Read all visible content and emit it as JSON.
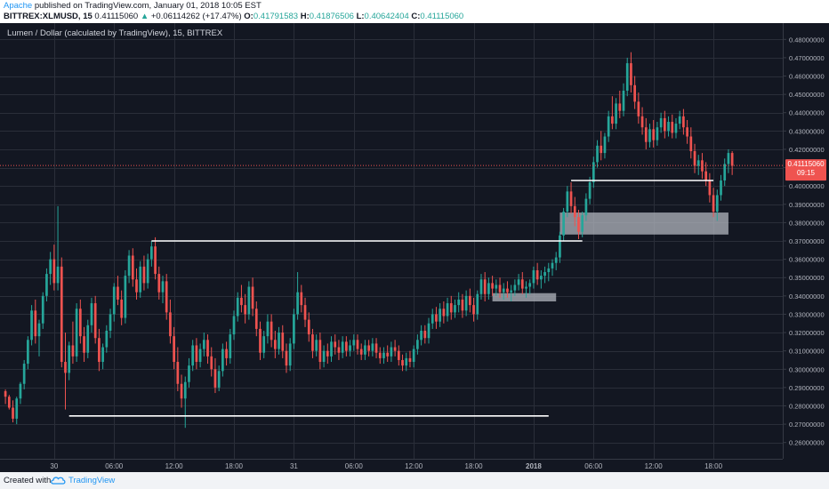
{
  "header": {
    "author": "Apache",
    "published_text": "published on TradingView.com, January 01, 2018 10:05 EST",
    "symbol": "BITTREX:XLMUSD, 15",
    "last": "0.41115060",
    "change_arrow": "▲",
    "change": "+0.06114262 (+17.47%)",
    "o_label": "O:",
    "o_value": "0.41791583",
    "h_label": "H:",
    "h_value": "0.41876506",
    "l_label": "L:",
    "l_value": "0.40642404",
    "c_label": "C:",
    "c_value": "0.41115060"
  },
  "footer": {
    "created_with": "Created with",
    "logo_icon": "tradingview-cloud-icon",
    "brand": "TradingView"
  },
  "chart_data": {
    "type": "candlestick",
    "title": "Lumen / Dollar (calculated by TradingView), 15, BITTREX",
    "ylim": [
      0.255,
      0.485
    ],
    "xlim": [
      0,
      208
    ],
    "y_ticks": [
      0.26,
      0.27,
      0.28,
      0.29,
      0.3,
      0.31,
      0.32,
      0.33,
      0.34,
      0.35,
      0.36,
      0.37,
      0.38,
      0.39,
      0.4,
      0.41,
      0.42,
      0.43,
      0.44,
      0.45,
      0.46,
      0.47,
      0.48
    ],
    "y_tick_labels": [
      "0.26000000",
      "0.27000000",
      "0.28000000",
      "0.29000000",
      "0.30000000",
      "0.31000000",
      "0.32000000",
      "0.33000000",
      "0.34000000",
      "0.35000000",
      "0.36000000",
      "0.37000000",
      "0.38000000",
      "0.39000000",
      "0.40000000",
      "0.41000000",
      "0.42000000",
      "0.43000000",
      "0.44000000",
      "0.45000000",
      "0.46000000",
      "0.47000000",
      "0.48000000"
    ],
    "x_ticks": [
      {
        "label": "30",
        "bar": 13
      },
      {
        "label": "06:00",
        "bar": 29
      },
      {
        "label": "12:00",
        "bar": 45
      },
      {
        "label": "18:00",
        "bar": 61
      },
      {
        "label": "31",
        "bar": 77
      },
      {
        "label": "06:00",
        "bar": 93
      },
      {
        "label": "12:00",
        "bar": 109
      },
      {
        "label": "18:00",
        "bar": 125
      },
      {
        "label": "2018",
        "bar": 141
      },
      {
        "label": "06:00",
        "bar": 157
      },
      {
        "label": "12:00",
        "bar": 173
      },
      {
        "label": "18:00",
        "bar": 189
      }
    ],
    "price_label": "0.41115060",
    "countdown": "09:15",
    "current_price": 0.4112,
    "candles": [
      [
        0.288,
        0.289,
        0.281,
        0.285
      ],
      [
        0.285,
        0.286,
        0.278,
        0.279
      ],
      [
        0.279,
        0.283,
        0.271,
        0.273
      ],
      [
        0.273,
        0.285,
        0.27,
        0.284
      ],
      [
        0.284,
        0.293,
        0.281,
        0.292
      ],
      [
        0.292,
        0.305,
        0.289,
        0.303
      ],
      [
        0.303,
        0.318,
        0.3,
        0.316
      ],
      [
        0.316,
        0.335,
        0.313,
        0.332
      ],
      [
        0.332,
        0.338,
        0.314,
        0.318
      ],
      [
        0.318,
        0.327,
        0.307,
        0.325
      ],
      [
        0.325,
        0.342,
        0.322,
        0.34
      ],
      [
        0.34,
        0.355,
        0.337,
        0.352
      ],
      [
        0.352,
        0.364,
        0.346,
        0.36
      ],
      [
        0.36,
        0.368,
        0.343,
        0.347
      ],
      [
        0.347,
        0.389,
        0.343,
        0.356
      ],
      [
        0.356,
        0.361,
        0.301,
        0.304
      ],
      [
        0.304,
        0.32,
        0.278,
        0.298
      ],
      [
        0.298,
        0.315,
        0.294,
        0.313
      ],
      [
        0.313,
        0.326,
        0.303,
        0.307
      ],
      [
        0.307,
        0.336,
        0.304,
        0.333
      ],
      [
        0.333,
        0.338,
        0.314,
        0.318
      ],
      [
        0.318,
        0.323,
        0.304,
        0.309
      ],
      [
        0.309,
        0.327,
        0.306,
        0.324
      ],
      [
        0.324,
        0.339,
        0.32,
        0.336
      ],
      [
        0.336,
        0.34,
        0.314,
        0.317
      ],
      [
        0.317,
        0.322,
        0.299,
        0.304
      ],
      [
        0.304,
        0.314,
        0.3,
        0.312
      ],
      [
        0.312,
        0.324,
        0.309,
        0.321
      ],
      [
        0.321,
        0.333,
        0.317,
        0.33
      ],
      [
        0.33,
        0.347,
        0.326,
        0.345
      ],
      [
        0.345,
        0.351,
        0.335,
        0.338
      ],
      [
        0.338,
        0.343,
        0.324,
        0.328
      ],
      [
        0.328,
        0.354,
        0.325,
        0.351
      ],
      [
        0.351,
        0.365,
        0.347,
        0.362
      ],
      [
        0.362,
        0.366,
        0.345,
        0.349
      ],
      [
        0.349,
        0.355,
        0.338,
        0.342
      ],
      [
        0.342,
        0.359,
        0.339,
        0.356
      ],
      [
        0.356,
        0.362,
        0.343,
        0.347
      ],
      [
        0.347,
        0.363,
        0.344,
        0.36
      ],
      [
        0.36,
        0.37,
        0.356,
        0.367
      ],
      [
        0.367,
        0.372,
        0.349,
        0.352
      ],
      [
        0.352,
        0.356,
        0.338,
        0.342
      ],
      [
        0.342,
        0.351,
        0.336,
        0.348
      ],
      [
        0.348,
        0.352,
        0.327,
        0.331
      ],
      [
        0.331,
        0.338,
        0.314,
        0.318
      ],
      [
        0.318,
        0.323,
        0.3,
        0.304
      ],
      [
        0.304,
        0.312,
        0.288,
        0.292
      ],
      [
        0.292,
        0.297,
        0.279,
        0.284
      ],
      [
        0.284,
        0.296,
        0.268,
        0.293
      ],
      [
        0.293,
        0.306,
        0.29,
        0.302
      ],
      [
        0.302,
        0.316,
        0.299,
        0.313
      ],
      [
        0.313,
        0.317,
        0.3,
        0.304
      ],
      [
        0.304,
        0.314,
        0.301,
        0.311
      ],
      [
        0.311,
        0.32,
        0.307,
        0.316
      ],
      [
        0.316,
        0.319,
        0.303,
        0.307
      ],
      [
        0.307,
        0.312,
        0.296,
        0.3
      ],
      [
        0.3,
        0.306,
        0.287,
        0.29
      ],
      [
        0.29,
        0.302,
        0.288,
        0.299
      ],
      [
        0.299,
        0.314,
        0.296,
        0.311
      ],
      [
        0.311,
        0.315,
        0.302,
        0.306
      ],
      [
        0.306,
        0.322,
        0.303,
        0.319
      ],
      [
        0.319,
        0.332,
        0.316,
        0.329
      ],
      [
        0.329,
        0.342,
        0.326,
        0.339
      ],
      [
        0.339,
        0.346,
        0.331,
        0.335
      ],
      [
        0.335,
        0.341,
        0.325,
        0.33
      ],
      [
        0.33,
        0.348,
        0.327,
        0.345
      ],
      [
        0.345,
        0.35,
        0.329,
        0.333
      ],
      [
        0.333,
        0.337,
        0.318,
        0.322
      ],
      [
        0.322,
        0.326,
        0.305,
        0.309
      ],
      [
        0.309,
        0.321,
        0.306,
        0.318
      ],
      [
        0.318,
        0.33,
        0.314,
        0.326
      ],
      [
        0.326,
        0.33,
        0.312,
        0.316
      ],
      [
        0.316,
        0.321,
        0.306,
        0.311
      ],
      [
        0.311,
        0.323,
        0.308,
        0.32
      ],
      [
        0.32,
        0.324,
        0.306,
        0.31
      ],
      [
        0.31,
        0.314,
        0.298,
        0.302
      ],
      [
        0.302,
        0.317,
        0.299,
        0.314
      ],
      [
        0.314,
        0.333,
        0.311,
        0.33
      ],
      [
        0.33,
        0.353,
        0.327,
        0.342
      ],
      [
        0.342,
        0.346,
        0.331,
        0.335
      ],
      [
        0.335,
        0.339,
        0.323,
        0.327
      ],
      [
        0.327,
        0.331,
        0.315,
        0.319
      ],
      [
        0.319,
        0.322,
        0.306,
        0.31
      ],
      [
        0.31,
        0.319,
        0.307,
        0.316
      ],
      [
        0.316,
        0.32,
        0.3,
        0.304
      ],
      [
        0.304,
        0.313,
        0.301,
        0.31
      ],
      [
        0.31,
        0.314,
        0.303,
        0.307
      ],
      [
        0.307,
        0.318,
        0.304,
        0.315
      ],
      [
        0.315,
        0.319,
        0.308,
        0.312
      ],
      [
        0.312,
        0.316,
        0.305,
        0.309
      ],
      [
        0.309,
        0.318,
        0.306,
        0.315
      ],
      [
        0.315,
        0.318,
        0.307,
        0.31
      ],
      [
        0.31,
        0.316,
        0.307,
        0.313
      ],
      [
        0.313,
        0.319,
        0.31,
        0.316
      ],
      [
        0.316,
        0.319,
        0.308,
        0.311
      ],
      [
        0.311,
        0.314,
        0.305,
        0.308
      ],
      [
        0.308,
        0.316,
        0.305,
        0.313
      ],
      [
        0.313,
        0.316,
        0.307,
        0.31
      ],
      [
        0.31,
        0.317,
        0.307,
        0.314
      ],
      [
        0.314,
        0.317,
        0.306,
        0.309
      ],
      [
        0.309,
        0.312,
        0.303,
        0.306
      ],
      [
        0.306,
        0.312,
        0.303,
        0.309
      ],
      [
        0.309,
        0.313,
        0.304,
        0.307
      ],
      [
        0.307,
        0.315,
        0.304,
        0.312
      ],
      [
        0.312,
        0.316,
        0.307,
        0.31
      ],
      [
        0.31,
        0.313,
        0.302,
        0.305
      ],
      [
        0.305,
        0.308,
        0.299,
        0.302
      ],
      [
        0.302,
        0.309,
        0.299,
        0.306
      ],
      [
        0.306,
        0.31,
        0.301,
        0.304
      ],
      [
        0.304,
        0.313,
        0.301,
        0.311
      ],
      [
        0.311,
        0.319,
        0.308,
        0.316
      ],
      [
        0.316,
        0.324,
        0.313,
        0.321
      ],
      [
        0.321,
        0.324,
        0.314,
        0.317
      ],
      [
        0.317,
        0.328,
        0.314,
        0.325
      ],
      [
        0.325,
        0.333,
        0.322,
        0.33
      ],
      [
        0.33,
        0.334,
        0.322,
        0.326
      ],
      [
        0.326,
        0.336,
        0.323,
        0.333
      ],
      [
        0.333,
        0.337,
        0.325,
        0.329
      ],
      [
        0.329,
        0.339,
        0.326,
        0.336
      ],
      [
        0.336,
        0.34,
        0.327,
        0.331
      ],
      [
        0.331,
        0.338,
        0.328,
        0.335
      ],
      [
        0.335,
        0.342,
        0.331,
        0.338
      ],
      [
        0.338,
        0.341,
        0.328,
        0.332
      ],
      [
        0.332,
        0.343,
        0.329,
        0.34
      ],
      [
        0.34,
        0.344,
        0.331,
        0.335
      ],
      [
        0.335,
        0.339,
        0.326,
        0.33
      ],
      [
        0.33,
        0.343,
        0.327,
        0.341
      ],
      [
        0.341,
        0.352,
        0.338,
        0.349
      ],
      [
        0.349,
        0.353,
        0.337,
        0.341
      ],
      [
        0.341,
        0.35,
        0.338,
        0.347
      ],
      [
        0.347,
        0.351,
        0.34,
        0.344
      ],
      [
        0.344,
        0.349,
        0.34,
        0.346
      ],
      [
        0.346,
        0.35,
        0.339,
        0.342
      ],
      [
        0.342,
        0.347,
        0.338,
        0.344
      ],
      [
        0.344,
        0.348,
        0.339,
        0.342
      ],
      [
        0.342,
        0.346,
        0.337,
        0.343
      ],
      [
        0.343,
        0.349,
        0.34,
        0.346
      ],
      [
        0.346,
        0.352,
        0.343,
        0.349
      ],
      [
        0.349,
        0.353,
        0.341,
        0.344
      ],
      [
        0.344,
        0.348,
        0.339,
        0.345
      ],
      [
        0.345,
        0.349,
        0.341,
        0.347
      ],
      [
        0.347,
        0.356,
        0.344,
        0.354
      ],
      [
        0.354,
        0.358,
        0.346,
        0.349
      ],
      [
        0.349,
        0.354,
        0.344,
        0.351
      ],
      [
        0.351,
        0.356,
        0.347,
        0.353
      ],
      [
        0.353,
        0.358,
        0.348,
        0.355
      ],
      [
        0.355,
        0.36,
        0.351,
        0.358
      ],
      [
        0.358,
        0.364,
        0.354,
        0.361
      ],
      [
        0.361,
        0.375,
        0.358,
        0.373
      ],
      [
        0.373,
        0.388,
        0.37,
        0.386
      ],
      [
        0.386,
        0.4,
        0.383,
        0.397
      ],
      [
        0.397,
        0.402,
        0.385,
        0.389
      ],
      [
        0.389,
        0.394,
        0.378,
        0.383
      ],
      [
        0.383,
        0.387,
        0.371,
        0.375
      ],
      [
        0.375,
        0.386,
        0.372,
        0.384
      ],
      [
        0.384,
        0.396,
        0.381,
        0.393
      ],
      [
        0.393,
        0.405,
        0.39,
        0.402
      ],
      [
        0.402,
        0.416,
        0.399,
        0.413
      ],
      [
        0.413,
        0.425,
        0.41,
        0.422
      ],
      [
        0.422,
        0.43,
        0.414,
        0.418
      ],
      [
        0.418,
        0.429,
        0.415,
        0.427
      ],
      [
        0.427,
        0.441,
        0.424,
        0.438
      ],
      [
        0.438,
        0.449,
        0.431,
        0.434
      ],
      [
        0.434,
        0.448,
        0.431,
        0.445
      ],
      [
        0.445,
        0.452,
        0.437,
        0.441
      ],
      [
        0.441,
        0.456,
        0.438,
        0.452
      ],
      [
        0.452,
        0.47,
        0.449,
        0.467
      ],
      [
        0.467,
        0.473,
        0.451,
        0.455
      ],
      [
        0.455,
        0.46,
        0.442,
        0.446
      ],
      [
        0.446,
        0.451,
        0.434,
        0.438
      ],
      [
        0.438,
        0.443,
        0.428,
        0.432
      ],
      [
        0.432,
        0.437,
        0.42,
        0.424
      ],
      [
        0.424,
        0.434,
        0.421,
        0.431
      ],
      [
        0.431,
        0.436,
        0.421,
        0.425
      ],
      [
        0.425,
        0.435,
        0.422,
        0.432
      ],
      [
        0.432,
        0.44,
        0.429,
        0.437
      ],
      [
        0.437,
        0.441,
        0.426,
        0.43
      ],
      [
        0.43,
        0.438,
        0.427,
        0.435
      ],
      [
        0.435,
        0.439,
        0.426,
        0.429
      ],
      [
        0.429,
        0.437,
        0.426,
        0.434
      ],
      [
        0.434,
        0.441,
        0.431,
        0.438
      ],
      [
        0.438,
        0.442,
        0.428,
        0.432
      ],
      [
        0.432,
        0.436,
        0.423,
        0.427
      ],
      [
        0.427,
        0.432,
        0.415,
        0.419
      ],
      [
        0.419,
        0.423,
        0.407,
        0.411
      ],
      [
        0.411,
        0.417,
        0.406,
        0.414
      ],
      [
        0.414,
        0.418,
        0.404,
        0.408
      ],
      [
        0.408,
        0.413,
        0.4,
        0.403
      ],
      [
        0.403,
        0.407,
        0.391,
        0.395
      ],
      [
        0.395,
        0.399,
        0.383,
        0.386
      ],
      [
        0.386,
        0.398,
        0.381,
        0.395
      ],
      [
        0.395,
        0.406,
        0.392,
        0.403
      ],
      [
        0.403,
        0.415,
        0.4,
        0.412
      ],
      [
        0.412,
        0.42,
        0.407,
        0.418
      ],
      [
        0.418,
        0.419,
        0.406,
        0.411
      ]
    ],
    "annotations": {
      "support_line": {
        "y": 0.2745,
        "x_from": 17,
        "x_to": 145
      },
      "resistance_line": {
        "y": 0.37,
        "x_from": 39,
        "x_to": 154
      },
      "level_line": {
        "y": 0.403,
        "x_from": 151,
        "x_to": 189
      },
      "zone_1": {
        "y_from": 0.337,
        "y_to": 0.3415,
        "x_from": 130,
        "x_to": 147
      },
      "zone_2": {
        "y_from": 0.3735,
        "y_to": 0.3855,
        "x_from": 148,
        "x_to": 193
      }
    },
    "colors": {
      "background": "#131722",
      "grid": "#2a2e39",
      "up": "#26a69a",
      "down": "#ef5350",
      "axis_text": "#b2b5be",
      "price_label": "#ef5350",
      "annotation": "#ffffff",
      "zone": "#b2b5be"
    }
  }
}
